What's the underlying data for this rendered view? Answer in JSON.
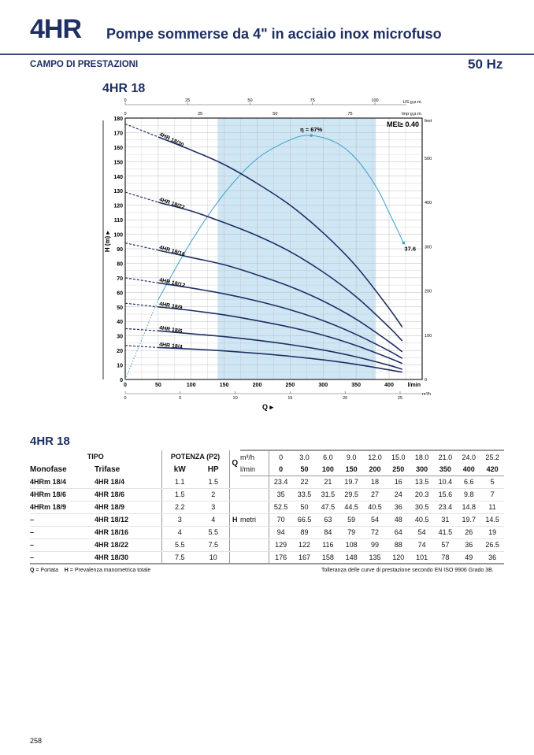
{
  "header": {
    "brand": "4HR",
    "subtitle": "Pompe sommerse da 4\" in acciaio inox microfuso",
    "section": "CAMPO DI PRESTAZIONI",
    "frequency": "50 Hz"
  },
  "chart_data": {
    "type": "line",
    "title": "4HR 18",
    "xlabel": "Q",
    "ylabel": "H (m)",
    "x_unit": "l/min",
    "x_secondary_unit": "m³/h",
    "top_units": [
      "US g.p.m.",
      "Imp g.p.m."
    ],
    "right_unit": "feet",
    "xlim": [
      0,
      435
    ],
    "ylim": [
      0,
      180
    ],
    "y_ticks": [
      0,
      10,
      20,
      30,
      40,
      50,
      60,
      70,
      80,
      90,
      100,
      110,
      120,
      130,
      140,
      150,
      160,
      170,
      180
    ],
    "x_ticks": [
      0,
      50,
      100,
      150,
      200,
      250,
      300,
      350,
      400
    ],
    "m3h_ticks": [
      0,
      5,
      10,
      15,
      20,
      25
    ],
    "us_gpm_ticks": [
      0,
      25,
      50,
      75,
      100
    ],
    "imp_gpm_ticks": [
      0,
      25,
      50,
      75
    ],
    "feet_ticks": [
      0,
      100,
      200,
      300,
      400,
      500
    ],
    "recommended_range": [
      140,
      380
    ],
    "mei": "MEI≥ 0.40",
    "x": [
      0,
      50,
      100,
      150,
      200,
      250,
      300,
      350,
      400,
      420
    ],
    "series": [
      {
        "name": "4HR 18/30",
        "values": [
          176,
          167,
          158,
          148,
          135,
          120,
          101,
          78,
          49,
          36
        ]
      },
      {
        "name": "4HR 18/22",
        "values": [
          129,
          122,
          116,
          108,
          99,
          88,
          74,
          57,
          36,
          26.5
        ]
      },
      {
        "name": "4HR 18/16",
        "values": [
          94,
          89,
          84,
          79,
          72,
          64,
          54,
          41.5,
          26,
          19
        ]
      },
      {
        "name": "4HR 18/12",
        "values": [
          70,
          66.5,
          63,
          59,
          54,
          48,
          40.5,
          31,
          19.7,
          14.5
        ]
      },
      {
        "name": "4HR 18/9",
        "values": [
          52.5,
          50,
          47.5,
          44.5,
          40.5,
          36,
          30.5,
          23.4,
          14.8,
          11
        ]
      },
      {
        "name": "4HR 18/6",
        "values": [
          35,
          33.5,
          31.5,
          29.5,
          27,
          24,
          20.3,
          15.6,
          9.8,
          7
        ]
      },
      {
        "name": "4HR 18/4",
        "values": [
          23.4,
          22,
          21,
          19.7,
          18,
          16,
          13.5,
          10.4,
          6.6,
          5
        ]
      }
    ],
    "efficiency": {
      "label": "η = 67%",
      "end_label": "37.6",
      "x": [
        0,
        50,
        100,
        150,
        200,
        250,
        282,
        320,
        350,
        380,
        400,
        422
      ],
      "values": [
        0,
        55,
        95,
        128,
        152,
        165,
        168,
        163,
        152,
        133,
        115,
        94
      ]
    }
  },
  "table": {
    "title": "4HR 18",
    "h_tipo": "TIPO",
    "h_potenza": "POTENZA (P2)",
    "h_q": "Q",
    "u_m3h": "m³/h",
    "u_lmin": "l/min",
    "h_mono": "Monofase",
    "h_tri": "Trifase",
    "h_kw": "kW",
    "h_hp": "HP",
    "h_h": "H",
    "u_metri": "metri",
    "q_m3h": [
      "0",
      "3.0",
      "6.0",
      "9.0",
      "12.0",
      "15.0",
      "18.0",
      "21.0",
      "24.0",
      "25.2"
    ],
    "q_lmin": [
      "0",
      "50",
      "100",
      "150",
      "200",
      "250",
      "300",
      "350",
      "400",
      "420"
    ],
    "rows": [
      {
        "mono": "4HRm 18/4",
        "tri": "4HR 18/4",
        "kw": "1.1",
        "hp": "1.5",
        "h": [
          "23.4",
          "22",
          "21",
          "19.7",
          "18",
          "16",
          "13.5",
          "10.4",
          "6.6",
          "5"
        ]
      },
      {
        "mono": "4HRm 18/6",
        "tri": "4HR 18/6",
        "kw": "1.5",
        "hp": "2",
        "h": [
          "35",
          "33.5",
          "31.5",
          "29.5",
          "27",
          "24",
          "20.3",
          "15.6",
          "9.8",
          "7"
        ]
      },
      {
        "mono": "4HRm 18/9",
        "tri": "4HR 18/9",
        "kw": "2.2",
        "hp": "3",
        "h": [
          "52.5",
          "50",
          "47.5",
          "44.5",
          "40.5",
          "36",
          "30.5",
          "23.4",
          "14.8",
          "11"
        ]
      },
      {
        "mono": "–",
        "tri": "4HR 18/12",
        "kw": "3",
        "hp": "4",
        "h": [
          "70",
          "66.5",
          "63",
          "59",
          "54",
          "48",
          "40.5",
          "31",
          "19.7",
          "14.5"
        ]
      },
      {
        "mono": "–",
        "tri": "4HR 18/16",
        "kw": "4",
        "hp": "5.5",
        "h": [
          "94",
          "89",
          "84",
          "79",
          "72",
          "64",
          "54",
          "41.5",
          "26",
          "19"
        ]
      },
      {
        "mono": "–",
        "tri": "4HR 18/22",
        "kw": "5.5",
        "hp": "7.5",
        "h": [
          "129",
          "122",
          "116",
          "108",
          "99",
          "88",
          "74",
          "57",
          "36",
          "26.5"
        ]
      },
      {
        "mono": "–",
        "tri": "4HR 18/30",
        "kw": "7.5",
        "hp": "10",
        "h": [
          "176",
          "167",
          "158",
          "148",
          "135",
          "120",
          "101",
          "78",
          "49",
          "36"
        ]
      }
    ]
  },
  "footer": {
    "legend_q": "Q",
    "legend_q_text": " = Portata",
    "legend_h": "H",
    "legend_h_text": " = Prevalenza manometrica totale",
    "tolerance": "Tolleranza delle curve di prestazione secondo EN ISO 9906 Grado 3B.",
    "page": "258"
  },
  "colors": {
    "navy": "#1d2f63",
    "curve": "#1f3064",
    "eff": "#3aa0d0",
    "range": "#cfe6f5"
  }
}
